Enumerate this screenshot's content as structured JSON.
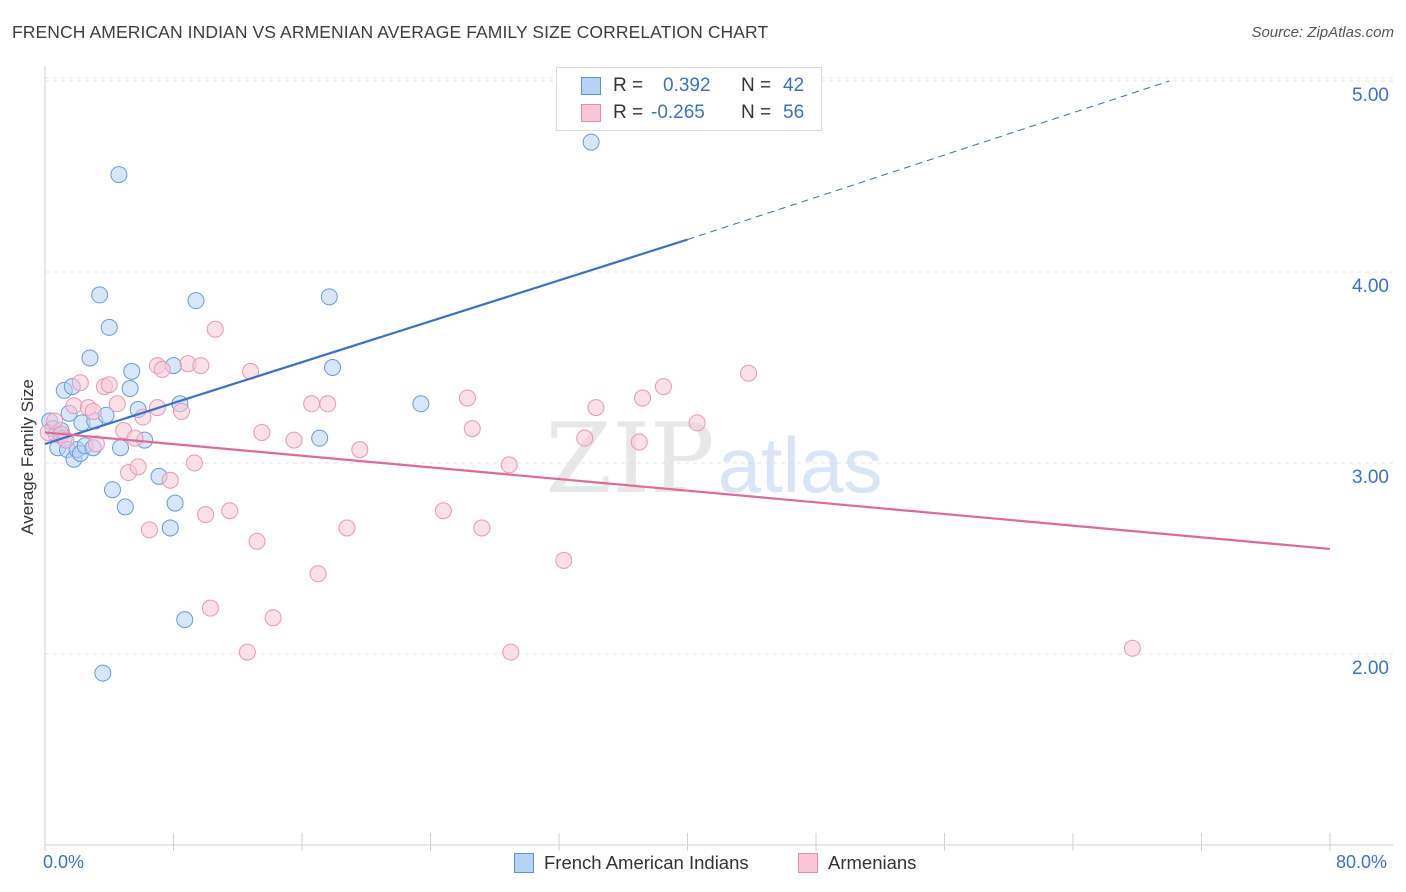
{
  "title": "FRENCH AMERICAN INDIAN VS ARMENIAN AVERAGE FAMILY SIZE CORRELATION CHART",
  "source": "Source: ZipAtlas.com",
  "watermark": {
    "zip": "ZIP",
    "atlas": "atlas"
  },
  "legend": {
    "r_label": "R =",
    "n_label": "N =",
    "series": [
      {
        "name": "French American Indians",
        "r": "0.392",
        "n": "42",
        "fill": "#b8d2f5",
        "stroke": "#5b8fd6"
      },
      {
        "name": "Armenians",
        "r": "-0.265",
        "n": "56",
        "fill": "#f8c6d6",
        "stroke": "#e58aa8"
      }
    ]
  },
  "axis": {
    "ylabel": "Average Family Size",
    "y_ticks": [
      "2.00",
      "3.00",
      "4.00",
      "5.00"
    ],
    "x_min_label": "0.0%",
    "x_max_label": "80.0%"
  },
  "chart_data": {
    "type": "scatter",
    "title": "FRENCH AMERICAN INDIAN VS ARMENIAN AVERAGE FAMILY SIZE CORRELATION CHART",
    "xlabel": "",
    "ylabel": "Average Family Size",
    "xlim": [
      0,
      80
    ],
    "ylim": [
      1.0,
      5.1
    ],
    "y_gridlines": [
      2.0,
      3.0,
      4.0,
      5.0
    ],
    "series": [
      {
        "name": "French American Indians",
        "color": "#3b72c5",
        "trend": {
          "x0": 0.0,
          "y0": 3.1,
          "x1": 40.0,
          "y1": 4.17,
          "dash_to_x": 70.0,
          "dash_to_y": 5.0
        },
        "points": [
          [
            0.3,
            3.22
          ],
          [
            0.5,
            3.18
          ],
          [
            0.7,
            3.15
          ],
          [
            0.8,
            3.08
          ],
          [
            1.0,
            3.17
          ],
          [
            1.2,
            3.13
          ],
          [
            1.2,
            3.38
          ],
          [
            1.4,
            3.07
          ],
          [
            1.5,
            3.26
          ],
          [
            1.7,
            3.4
          ],
          [
            1.8,
            3.02
          ],
          [
            2.0,
            3.07
          ],
          [
            2.2,
            3.05
          ],
          [
            2.3,
            3.21
          ],
          [
            2.5,
            3.09
          ],
          [
            2.8,
            3.55
          ],
          [
            3.0,
            3.08
          ],
          [
            3.1,
            3.22
          ],
          [
            3.4,
            3.88
          ],
          [
            3.6,
            1.9
          ],
          [
            3.8,
            3.25
          ],
          [
            4.0,
            3.71
          ],
          [
            4.2,
            2.86
          ],
          [
            4.6,
            4.51
          ],
          [
            4.7,
            3.08
          ],
          [
            5.0,
            2.77
          ],
          [
            5.3,
            3.39
          ],
          [
            5.4,
            3.48
          ],
          [
            5.8,
            3.28
          ],
          [
            6.2,
            3.12
          ],
          [
            7.1,
            2.93
          ],
          [
            7.8,
            2.66
          ],
          [
            8.0,
            3.51
          ],
          [
            8.1,
            2.79
          ],
          [
            8.4,
            3.31
          ],
          [
            8.7,
            2.18
          ],
          [
            9.4,
            3.85
          ],
          [
            17.7,
            3.87
          ],
          [
            17.9,
            3.5
          ],
          [
            17.1,
            3.13
          ],
          [
            23.4,
            3.31
          ],
          [
            34.0,
            4.68
          ]
        ]
      },
      {
        "name": "Armenians",
        "color": "#e06b92",
        "trend": {
          "x0": 0.0,
          "y0": 3.16,
          "x1": 80.0,
          "y1": 2.55
        },
        "points": [
          [
            0.2,
            3.16
          ],
          [
            0.6,
            3.22
          ],
          [
            1.0,
            3.15
          ],
          [
            1.3,
            3.12
          ],
          [
            1.8,
            3.3
          ],
          [
            2.2,
            3.42
          ],
          [
            2.7,
            3.29
          ],
          [
            3.0,
            3.27
          ],
          [
            3.2,
            3.1
          ],
          [
            3.7,
            3.4
          ],
          [
            4.0,
            3.41
          ],
          [
            4.5,
            3.31
          ],
          [
            4.9,
            3.17
          ],
          [
            5.2,
            2.95
          ],
          [
            5.6,
            3.13
          ],
          [
            5.8,
            2.98
          ],
          [
            6.1,
            3.24
          ],
          [
            6.5,
            2.65
          ],
          [
            7.0,
            3.29
          ],
          [
            7.0,
            3.51
          ],
          [
            7.3,
            3.49
          ],
          [
            7.8,
            2.91
          ],
          [
            8.5,
            3.27
          ],
          [
            8.9,
            3.52
          ],
          [
            9.3,
            3.0
          ],
          [
            9.7,
            3.51
          ],
          [
            10.0,
            2.73
          ],
          [
            10.3,
            2.24
          ],
          [
            10.6,
            3.7
          ],
          [
            11.5,
            2.75
          ],
          [
            12.6,
            2.01
          ],
          [
            12.8,
            3.48
          ],
          [
            13.2,
            2.59
          ],
          [
            13.5,
            3.16
          ],
          [
            14.2,
            2.19
          ],
          [
            15.5,
            3.12
          ],
          [
            16.6,
            3.31
          ],
          [
            17.0,
            2.42
          ],
          [
            17.6,
            3.31
          ],
          [
            18.8,
            2.66
          ],
          [
            19.6,
            3.07
          ],
          [
            24.8,
            2.75
          ],
          [
            26.3,
            3.34
          ],
          [
            26.6,
            3.18
          ],
          [
            27.2,
            2.66
          ],
          [
            28.9,
            2.99
          ],
          [
            29.0,
            2.01
          ],
          [
            32.3,
            2.49
          ],
          [
            33.6,
            3.13
          ],
          [
            34.3,
            3.29
          ],
          [
            37.0,
            3.11
          ],
          [
            37.2,
            3.34
          ],
          [
            38.5,
            3.4
          ],
          [
            40.6,
            3.21
          ],
          [
            43.8,
            3.47
          ],
          [
            67.7,
            2.03
          ]
        ]
      }
    ]
  }
}
